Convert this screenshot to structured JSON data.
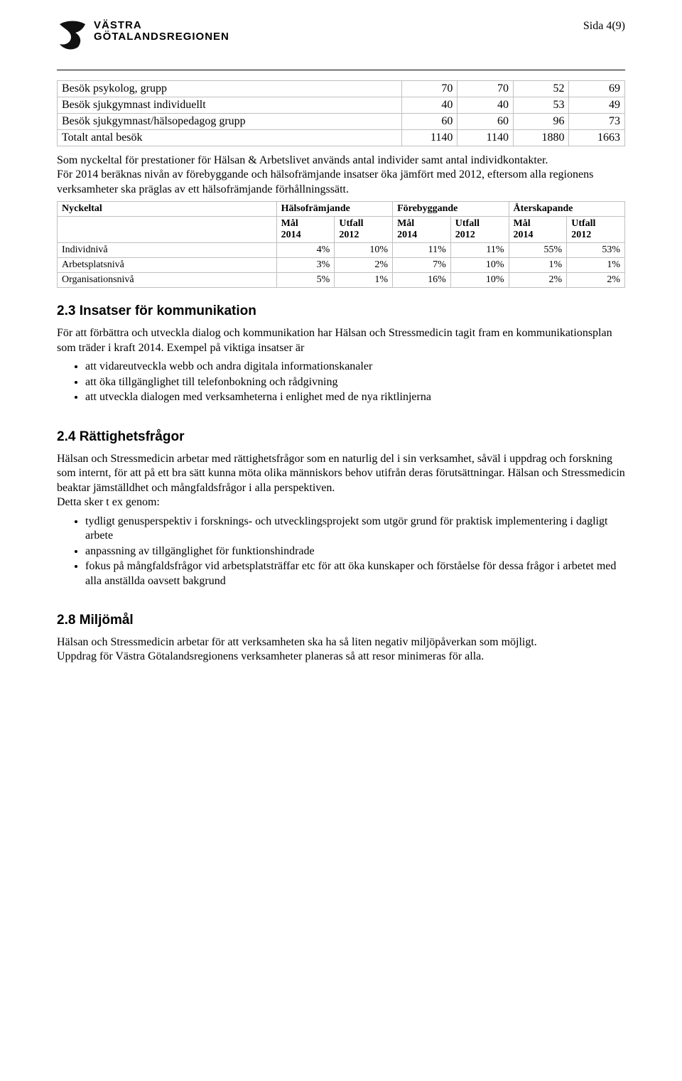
{
  "page_label": "Sida 4(9)",
  "logo": {
    "line1": "VÄSTRA",
    "line2": "GÖTALANDSREGIONEN"
  },
  "table1": {
    "rows": [
      {
        "label": "Besök psykolog, grupp",
        "c1": "70",
        "c2": "70",
        "c3": "52",
        "c4": "69"
      },
      {
        "label": "Besök sjukgymnast individuellt",
        "c1": "40",
        "c2": "40",
        "c3": "53",
        "c4": "49"
      },
      {
        "label": "Besök sjukgymnast/hälsopedagog grupp",
        "c1": "60",
        "c2": "60",
        "c3": "96",
        "c4": "73"
      },
      {
        "label": "Totalt antal besök",
        "c1": "1140",
        "c2": "1140",
        "c3": "1880",
        "c4": "1663"
      }
    ],
    "border_color": "#c0c0c0"
  },
  "para1": "Som nyckeltal för prestationer för Hälsan & Arbetslivet används antal individer samt antal individkontakter.",
  "para1b": "För 2014 beräknas nivån av förebyggande och hälsofrämjande insatser öka jämfört med 2012, eftersom alla regionens verksamheter ska präglas av ett hälsofrämjande förhållningssätt.",
  "table2": {
    "headers": {
      "nyckeltal": "Nyckeltal",
      "groups": [
        "Hälsofrämjande",
        "Förebyggande",
        "Återskapande"
      ],
      "sub_mal": "Mål",
      "sub_utfall": "Utfall",
      "year_mal": "2014",
      "year_utfall": "2012"
    },
    "rows": [
      {
        "label": "Individnivå",
        "v": [
          "4%",
          "10%",
          "11%",
          "11%",
          "55%",
          "53%"
        ]
      },
      {
        "label": "Arbetsplatsnivå",
        "v": [
          "3%",
          "2%",
          "7%",
          "10%",
          "1%",
          "1%"
        ]
      },
      {
        "label": "Organisationsnivå",
        "v": [
          "5%",
          "1%",
          "16%",
          "10%",
          "2%",
          "2%"
        ]
      }
    ]
  },
  "sec23": {
    "heading": "2.3 Insatser för kommunikation",
    "para": "För att förbättra och utveckla dialog och kommunikation har Hälsan och Stressmedicin tagit fram en kommunikationsplan som träder i kraft 2014. Exempel på viktiga insatser är",
    "bullets": [
      "att vidareutveckla webb och andra digitala informationskanaler",
      "att öka tillgänglighet till telefonbokning och rådgivning",
      "att utveckla dialogen med verksamheterna i enlighet med de nya riktlinjerna"
    ]
  },
  "sec24": {
    "heading": "2.4 Rättighetsfrågor",
    "para": "Hälsan och Stressmedicin arbetar med rättighetsfrågor som en naturlig del i sin verksamhet, såväl i uppdrag och forskning som internt, för att på ett bra sätt kunna möta olika människors behov utifrån deras förutsättningar. Hälsan och Stressmedicin beaktar jämställdhet och mångfaldsfrågor i alla perspektiven.",
    "para2": "Detta sker t ex genom:",
    "bullets": [
      "tydligt genusperspektiv i forsknings- och utvecklingsprojekt som utgör grund för praktisk implementering i dagligt arbete",
      "anpassning av tillgänglighet för funktionshindrade",
      "fokus på mångfaldsfrågor vid arbetsplatsträffar etc för att öka kunskaper och förståelse för dessa frågor i arbetet med alla anställda oavsett bakgrund"
    ]
  },
  "sec28": {
    "heading": "2.8 Miljömål",
    "para": "Hälsan och Stressmedicin arbetar för att verksamheten ska ha så liten negativ miljöpåverkan som möjligt.",
    "para2": "Uppdrag för Västra Götalandsregionens verksamheter planeras så att resor minimeras för alla."
  }
}
